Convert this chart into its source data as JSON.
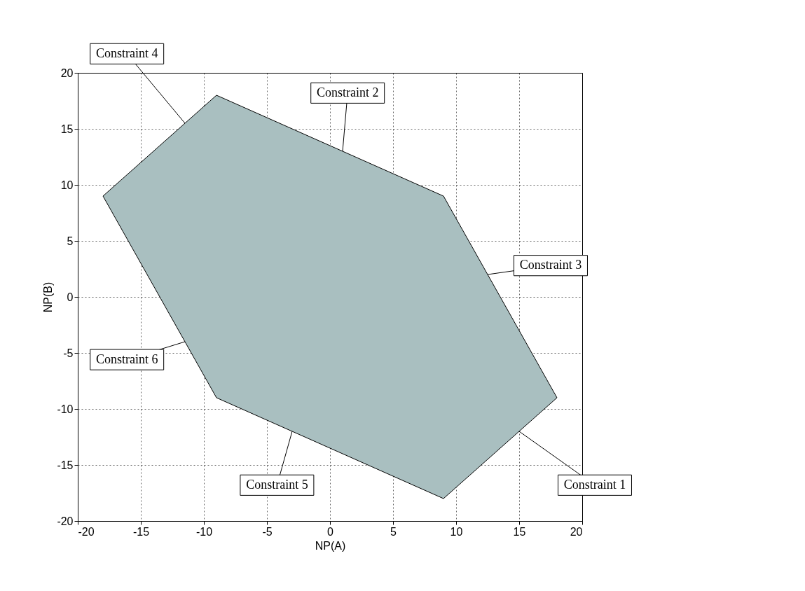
{
  "chart_data": {
    "type": "area",
    "xlabel": "NP(A)",
    "ylabel": "NP(B)",
    "series": [
      {
        "color": "#a9bfc0",
        "x": [
          -18,
          -9,
          9,
          18,
          9,
          -9,
          -18
        ],
        "values": [
          9,
          18,
          9,
          -9,
          -18,
          -9,
          9
        ]
      }
    ],
    "xlim": [
      -20,
      20
    ],
    "ylim": [
      -20,
      20
    ],
    "xticks": [
      -20,
      -15,
      -10,
      -5,
      0,
      5,
      10,
      15,
      20
    ],
    "yticks": [
      -20,
      -15,
      -10,
      -5,
      0,
      5,
      10,
      15,
      20
    ],
    "grid": true,
    "annotations": [
      {
        "text": "Constraint 1",
        "x": 15,
        "y": -12
      },
      {
        "text": "Constraint 2",
        "x": 1,
        "y": 13
      },
      {
        "text": "Constraint 3",
        "x": 12.5,
        "y": 2
      },
      {
        "text": "Constraint 4",
        "x": -11.5,
        "y": 15.5
      },
      {
        "text": "Constraint 5",
        "x": -3,
        "y": -12
      },
      {
        "text": "Constraint 6",
        "x": -11.5,
        "y": -4
      }
    ]
  }
}
